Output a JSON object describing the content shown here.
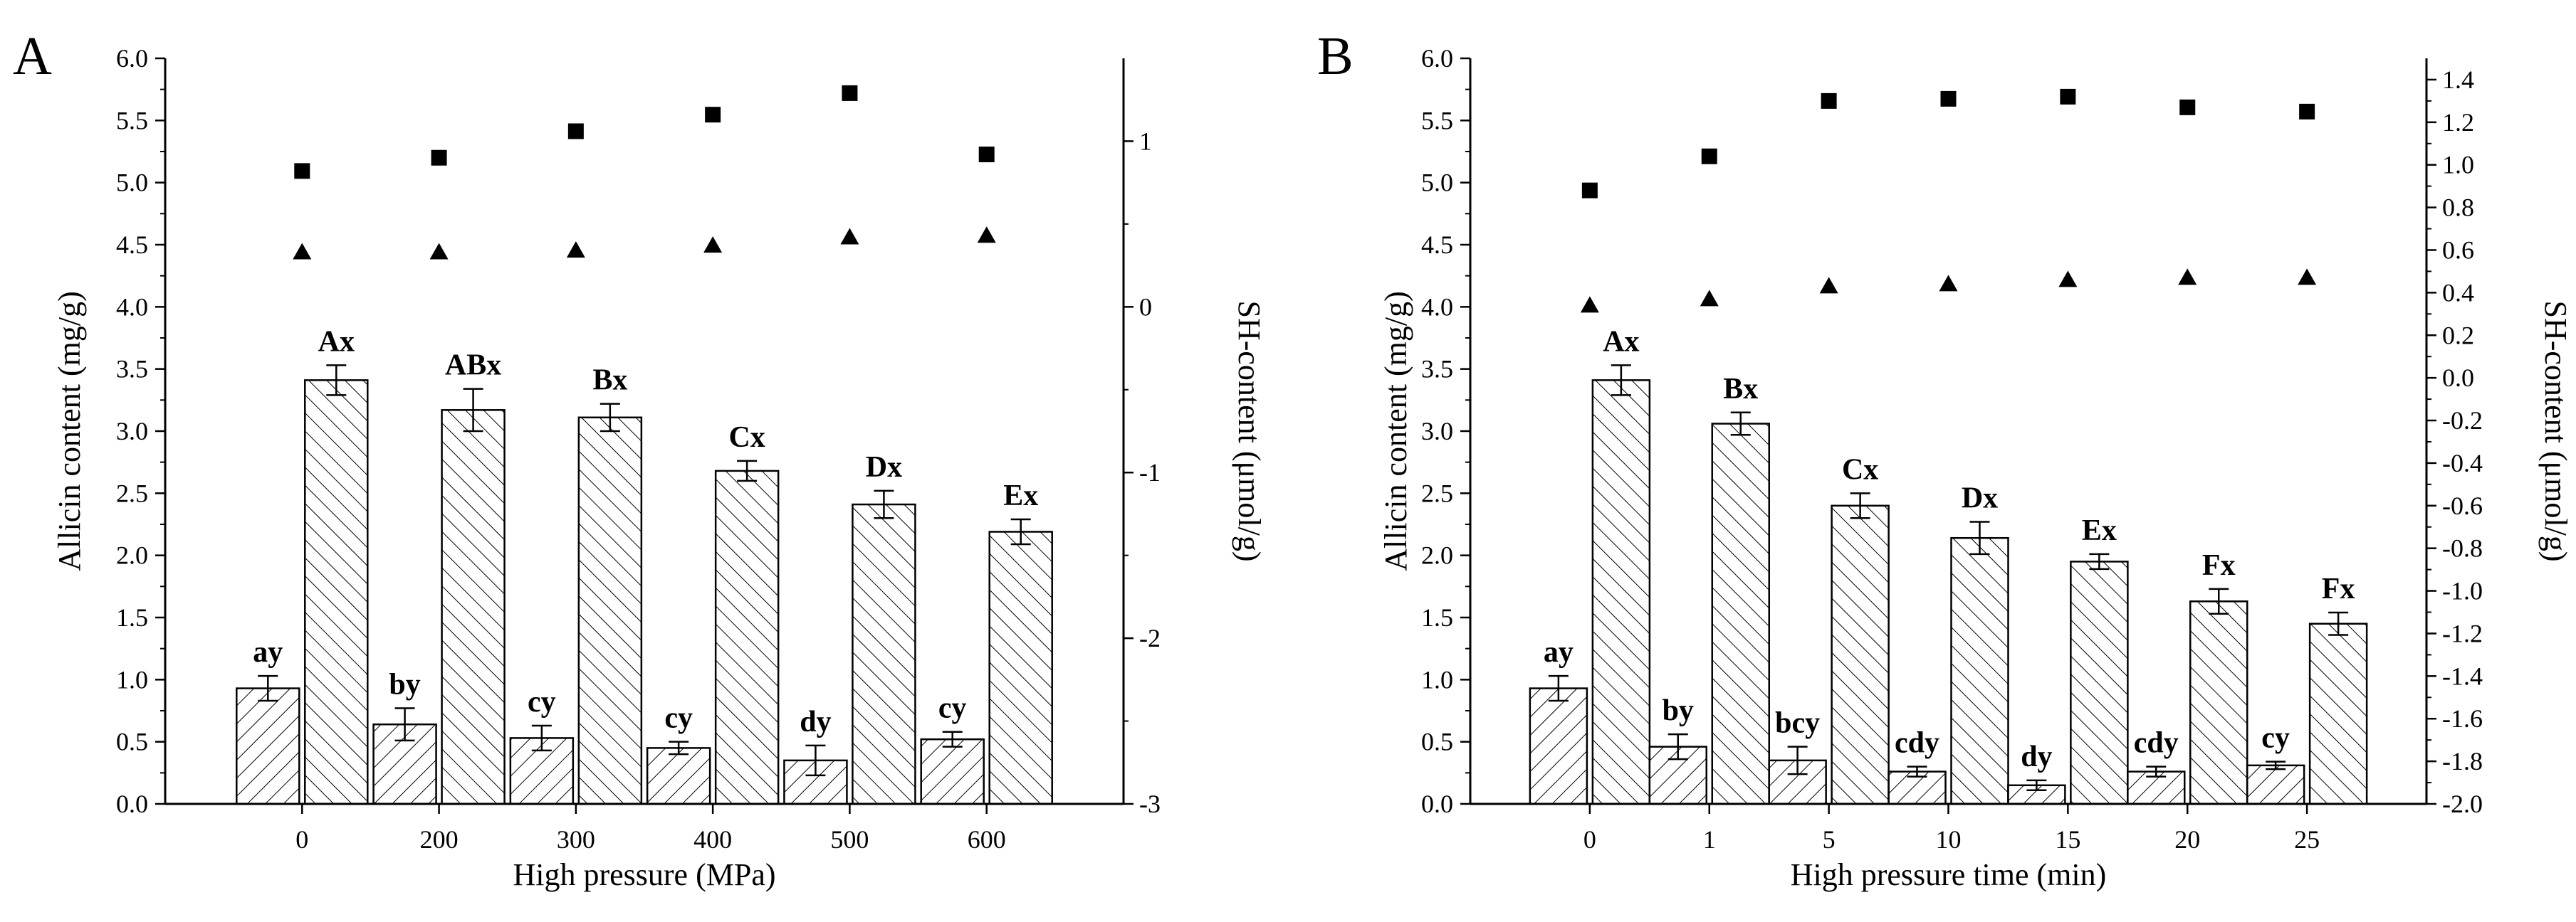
{
  "chart_data": [
    {
      "type": "bar",
      "panel_label": "A",
      "xlabel": "High pressure (MPa)",
      "ylabel": "Allicin content (mg/g)",
      "y2label": "SH-content (μmol/g)",
      "categories": [
        "0",
        "200",
        "300",
        "400",
        "500",
        "600"
      ],
      "ylim": [
        0,
        6
      ],
      "yticks": [
        "0.0",
        "0.5",
        "1.0",
        "1.5",
        "2.0",
        "2.5",
        "3.0",
        "3.5",
        "4.0",
        "4.5",
        "5.0",
        "5.5",
        "6.0"
      ],
      "y2lim": [
        -3,
        1.5
      ],
      "y2ticks": [
        "-3",
        "-2",
        "-1",
        "0",
        "1"
      ],
      "series": [
        {
          "name": "Allicin (hatched /)",
          "axis": "left",
          "values": [
            0.93,
            0.64,
            0.53,
            0.45,
            0.35,
            0.52
          ],
          "errors": [
            0.1,
            0.13,
            0.1,
            0.05,
            0.12,
            0.06
          ],
          "labels": [
            "ay",
            "by",
            "cy",
            "cy",
            "dy",
            "cy"
          ]
        },
        {
          "name": "Allicin (hatched \\)",
          "axis": "left",
          "values": [
            3.41,
            3.17,
            3.11,
            2.68,
            2.41,
            2.19
          ],
          "errors": [
            0.12,
            0.17,
            0.11,
            0.08,
            0.11,
            0.1
          ],
          "labels": [
            "Ax",
            "ABx",
            "Bx",
            "Cx",
            "Dx",
            "Ex"
          ]
        },
        {
          "name": "SH-content (squares)",
          "axis": "right",
          "marker": "square",
          "values": [
            0.82,
            0.9,
            1.06,
            1.16,
            1.29,
            0.92
          ]
        },
        {
          "name": "SH-content (triangles)",
          "axis": "right",
          "marker": "triangle",
          "values": [
            0.33,
            0.33,
            0.34,
            0.37,
            0.42,
            0.43
          ]
        }
      ]
    },
    {
      "type": "bar",
      "panel_label": "B",
      "xlabel": "High pressure time (min)",
      "ylabel": "Allicin content (mg/g)",
      "y2label": "SH-content (μmol/g)",
      "categories": [
        "0",
        "1",
        "5",
        "10",
        "15",
        "20",
        "25"
      ],
      "ylim": [
        0,
        6
      ],
      "yticks": [
        "0.0",
        "0.5",
        "1.0",
        "1.5",
        "2.0",
        "2.5",
        "3.0",
        "3.5",
        "4.0",
        "4.5",
        "5.0",
        "5.5",
        "6.0"
      ],
      "y2lim": [
        -2.0,
        1.5
      ],
      "y2ticks": [
        "-2.0",
        "-1.8",
        "-1.6",
        "-1.4",
        "-1.2",
        "-1.0",
        "-0.8",
        "-0.6",
        "-0.4",
        "-0.2",
        "0.0",
        "0.2",
        "0.4",
        "0.6",
        "0.8",
        "1.0",
        "1.2",
        "1.4"
      ],
      "series": [
        {
          "name": "Allicin (hatched /)",
          "axis": "left",
          "values": [
            0.93,
            0.46,
            0.35,
            0.26,
            0.15,
            0.26,
            0.31
          ],
          "errors": [
            0.1,
            0.1,
            0.11,
            0.04,
            0.04,
            0.04,
            0.03
          ],
          "labels": [
            "ay",
            "by",
            "bcy",
            "cdy",
            "dy",
            "cdy",
            "cy"
          ]
        },
        {
          "name": "Allicin (hatched \\)",
          "axis": "left",
          "values": [
            3.41,
            3.06,
            2.4,
            2.14,
            1.95,
            1.63,
            1.45
          ],
          "errors": [
            0.12,
            0.09,
            0.1,
            0.13,
            0.06,
            0.1,
            0.09
          ],
          "labels": [
            "Ax",
            "Bx",
            "Cx",
            "Dx",
            "Ex",
            "Fx",
            "Fx"
          ]
        },
        {
          "name": "SH-content (squares)",
          "axis": "right",
          "marker": "square",
          "values": [
            0.88,
            1.04,
            1.3,
            1.31,
            1.32,
            1.27,
            1.25
          ]
        },
        {
          "name": "SH-content (triangles)",
          "axis": "right",
          "marker": "triangle",
          "values": [
            0.34,
            0.37,
            0.43,
            0.44,
            0.46,
            0.47,
            0.47
          ]
        }
      ]
    }
  ]
}
